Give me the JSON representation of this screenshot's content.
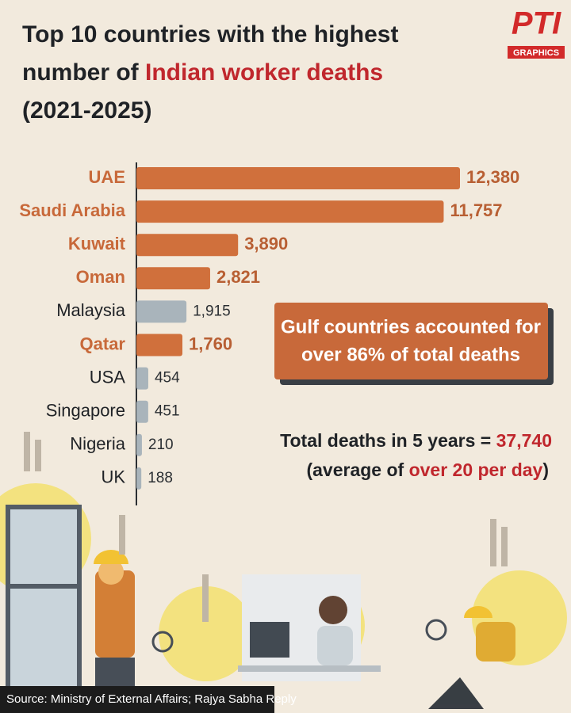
{
  "logo": {
    "name": "PTI",
    "tag": "GRAPHICS"
  },
  "chart_data": {
    "type": "bar",
    "orientation": "horizontal",
    "title": {
      "line1": "Top 10 countries with the highest",
      "line2": "number of",
      "line2_highlight": "Indian worker deaths",
      "line3": "(2021-2025)"
    },
    "categories": [
      "UAE",
      "Saudi Arabia",
      "Kuwait",
      "Oman",
      "Malaysia",
      "Qatar",
      "USA",
      "Singapore",
      "Nigeria",
      "UK"
    ],
    "values": [
      12380,
      11757,
      3890,
      2821,
      1915,
      1760,
      454,
      451,
      210,
      188
    ],
    "value_labels": [
      "12,380",
      "11,757",
      "3,890",
      "2,821",
      "1,915",
      "1,760",
      "454",
      "451",
      "210",
      "188"
    ],
    "colors": [
      "#d0703c",
      "#d0703c",
      "#d0703c",
      "#d0703c",
      "#a9b4bb",
      "#d0703c",
      "#a9b4bb",
      "#a9b4bb",
      "#a9b4bb",
      "#a9b4bb"
    ],
    "highlighted": [
      true,
      true,
      true,
      true,
      false,
      true,
      false,
      false,
      false,
      false
    ],
    "annotations": {
      "box": [
        "Gulf countries accounted for",
        "over 86% of total deaths"
      ],
      "total": {
        "text": "Total deaths in 5 years =",
        "value": "37,740"
      },
      "average": {
        "before": "(average of",
        "highlight": "over 20 per day",
        "after": ")"
      }
    },
    "source": "Source: Ministry of External Affairs; Rajya Sabha Reply"
  }
}
